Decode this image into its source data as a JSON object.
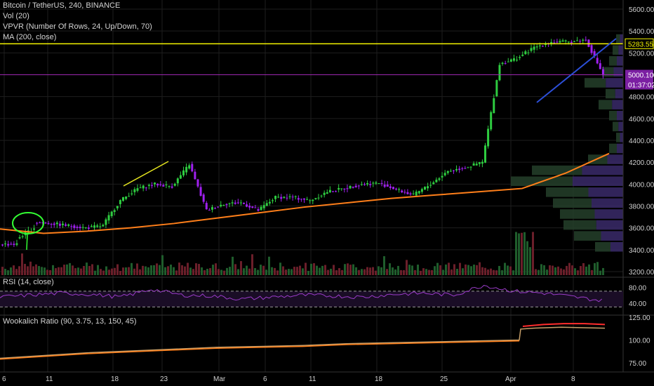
{
  "header": {
    "symbol": "Bitcoin / TetherUS, 240, BINANCE",
    "vol": "Vol (20)",
    "vpvr": "VPVR (Number Of Rows, 24, Up/Down, 70)",
    "ma": "MA (200, close)"
  },
  "panes": {
    "rsi_label": "RSI (14, close)",
    "wook_label": "Wookalich Ratio (90, 3.75, 13, 150, 45)"
  },
  "price_tags": {
    "resistance": "5283.55",
    "current": "5000.10",
    "countdown": "01:37:02"
  },
  "colors": {
    "up": "#2ecc40",
    "down": "#a020f0",
    "ma": "#ff7f1a",
    "resistance": "#f4f400",
    "current_line": "#9c27b0",
    "trend": "#2c4fd8",
    "annotation": "#33ff33",
    "wook_fast": "#ff2d2d",
    "wook_slow": "#c8a06a"
  },
  "chart_data": {
    "type": "candlestick",
    "price_axis": {
      "min": 3200,
      "max": 5600,
      "ticks": [
        3200,
        3400,
        3600,
        3800,
        4000,
        4200,
        4400,
        4600,
        4800,
        5000,
        5200,
        5400,
        5600
      ],
      "tick_labels": [
        "3200.00",
        "3400.00",
        "3600.00",
        "3800.00",
        "4000.00",
        "4200.00",
        "4400.00",
        "4600.00",
        "4800.00",
        "5000.00",
        "5200.00",
        "5400.00",
        "5600.00"
      ]
    },
    "rsi_axis": {
      "ticks": [
        40,
        80
      ],
      "tick_labels": [
        "40.00",
        "80.00"
      ],
      "bands": [
        70,
        30
      ]
    },
    "wook_axis": {
      "ticks": [
        75,
        100,
        125
      ],
      "tick_labels": [
        "75.00",
        "100.00",
        "125.00"
      ]
    },
    "x_tick_labels": [
      "6",
      "11",
      "18",
      "23",
      "Mar",
      "6",
      "11",
      "18",
      "25",
      "Apr",
      "8"
    ],
    "resistance_level": 5283.55,
    "current_level": 5000.1,
    "price_path": [
      [
        3450,
        3450
      ],
      [
        3500,
        3600
      ],
      [
        3650,
        3640
      ],
      [
        3640,
        3620
      ],
      [
        3620,
        3600
      ],
      [
        3600,
        3620
      ],
      [
        3630,
        3850
      ],
      [
        3850,
        3960
      ],
      [
        3960,
        4000
      ],
      [
        4000,
        3980
      ],
      [
        3980,
        4180
      ],
      [
        4180,
        3760
      ],
      [
        3760,
        3820
      ],
      [
        3820,
        3830
      ],
      [
        3830,
        3760
      ],
      [
        3760,
        3880
      ],
      [
        3880,
        3880
      ],
      [
        3880,
        3850
      ],
      [
        3850,
        3930
      ],
      [
        3930,
        3960
      ],
      [
        3960,
        4000
      ],
      [
        4000,
        4010
      ],
      [
        4010,
        3950
      ],
      [
        3950,
        3900
      ],
      [
        3900,
        4000
      ],
      [
        4000,
        4120
      ],
      [
        4120,
        4150
      ],
      [
        4150,
        4200
      ],
      [
        4200,
        5100
      ],
      [
        5100,
        5150
      ],
      [
        5150,
        5250
      ],
      [
        5250,
        5300
      ],
      [
        5300,
        5300
      ],
      [
        5300,
        5320
      ],
      [
        5320,
        5000
      ]
    ],
    "ma200": [
      3590,
      3550,
      3570,
      3600,
      3640,
      3690,
      3740,
      3790,
      3830,
      3870,
      3900,
      3930,
      3960,
      4100,
      4280
    ],
    "rsi": [
      55,
      60,
      65,
      62,
      55,
      75,
      60,
      58,
      50,
      55,
      60,
      58,
      55,
      62,
      65,
      60,
      85,
      70,
      65,
      55,
      45
    ],
    "wookalich_slow": [
      80,
      83,
      86,
      88,
      90,
      92,
      93,
      94,
      96,
      97,
      98,
      99,
      100
    ],
    "wookalich_fast": [
      115,
      117,
      118,
      118,
      117
    ]
  }
}
